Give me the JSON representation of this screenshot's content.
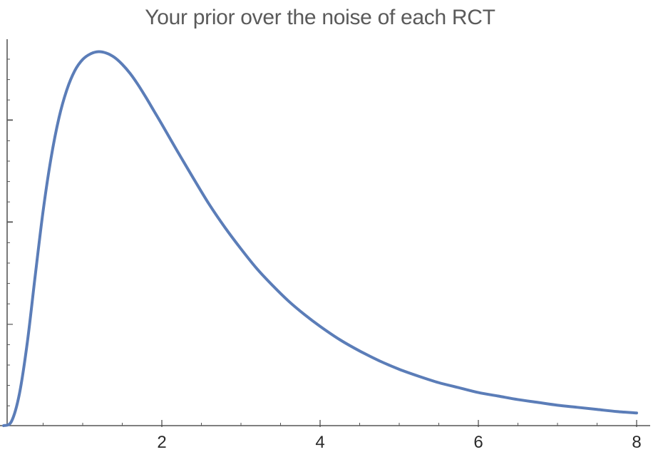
{
  "chart_data": {
    "type": "line",
    "title": "Your prior over the noise of each RCT",
    "xlabel": "",
    "ylabel": "",
    "xlim": [
      0,
      8
    ],
    "ylim": [
      0,
      0.57
    ],
    "x_ticks": [
      2,
      4,
      6,
      8
    ],
    "x_tick_labels": [
      "2",
      "4",
      "6",
      "8"
    ],
    "y_tick_labels_shown": false,
    "grid": false,
    "series": [
      {
        "color": "#5b7db8",
        "x": [
          0,
          0.1,
          0.2,
          0.3,
          0.4,
          0.5,
          0.6,
          0.7,
          0.8,
          0.9,
          1.0,
          1.1,
          1.2,
          1.3,
          1.4,
          1.5,
          1.6,
          1.7,
          1.8,
          1.9,
          2.0,
          2.2,
          2.4,
          2.6,
          2.8,
          3.0,
          3.2,
          3.4,
          3.6,
          3.8,
          4.0,
          4.25,
          4.5,
          4.75,
          5.0,
          5.25,
          5.5,
          5.75,
          6.0,
          6.25,
          6.5,
          6.75,
          7.0,
          7.25,
          7.5,
          7.75,
          8.0
        ],
        "y": [
          0,
          0.006,
          0.045,
          0.118,
          0.213,
          0.305,
          0.38,
          0.437,
          0.477,
          0.504,
          0.52,
          0.528,
          0.531,
          0.529,
          0.523,
          0.513,
          0.5,
          0.484,
          0.466,
          0.447,
          0.428,
          0.389,
          0.351,
          0.314,
          0.281,
          0.251,
          0.223,
          0.199,
          0.177,
          0.158,
          0.141,
          0.122,
          0.106,
          0.092,
          0.08,
          0.07,
          0.061,
          0.054,
          0.047,
          0.042,
          0.037,
          0.033,
          0.029,
          0.026,
          0.023,
          0.02,
          0.018
        ]
      }
    ]
  }
}
